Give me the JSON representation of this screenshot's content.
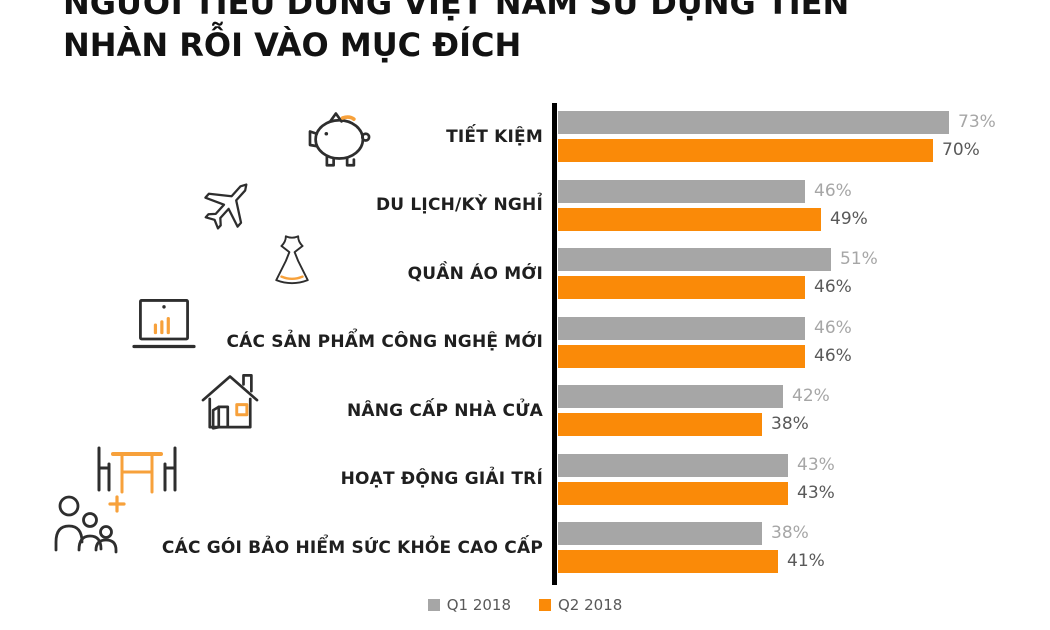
{
  "title": {
    "line1": "NGƯỜI TIÊU DÙNG VIỆT NAM SỬ DỤNG TIỀN",
    "line2": "NHÀN RỖI VÀO MỤC ĐÍCH"
  },
  "legend": {
    "q1": "Q1 2018",
    "q2": "Q2 2018"
  },
  "colors": {
    "q1_bar": "#A6A6A6",
    "q2_bar": "#FA8A08",
    "q1_value_label": "#A6A6A6",
    "q2_value_label": "#595959",
    "axis": "#000000",
    "icon_stroke": "#2E2E2E",
    "icon_accent": "#F7A13B",
    "category_label": "#1F1F1F"
  },
  "chart_data": {
    "type": "bar",
    "orientation": "horizontal",
    "title": "NGƯỜI TIÊU DÙNG VIỆT NAM SỬ DỤNG TIỀN NHÀN RỖI VÀO MỤC ĐÍCH",
    "categories": [
      "TIẾT KIỆM",
      "DU LỊCH/KỲ NGHỈ",
      "QUẦN ÁO MỚI",
      "CÁC SẢN PHẨM CÔNG NGHỆ MỚI",
      "NÂNG CẤP NHÀ CỬA",
      "HOẠT ĐỘNG GIẢI TRÍ",
      "CÁC GÓI BẢO HIỂM SỨC KHỎE CAO CẤP"
    ],
    "icons": [
      "piggy-bank-icon",
      "airplane-icon",
      "dress-icon",
      "laptop-chart-icon",
      "house-icon",
      "table-chairs-icon",
      "people-plus-icon"
    ],
    "series": [
      {
        "name": "Q1 2018",
        "color": "#A6A6A6",
        "values": [
          73,
          46,
          51,
          46,
          42,
          43,
          38
        ]
      },
      {
        "name": "Q2 2018",
        "color": "#FA8A08",
        "values": [
          70,
          49,
          46,
          46,
          38,
          43,
          41
        ]
      }
    ],
    "value_suffix": "%",
    "xlim": [
      0,
      100
    ],
    "grid": false,
    "legend_position": "bottom"
  }
}
